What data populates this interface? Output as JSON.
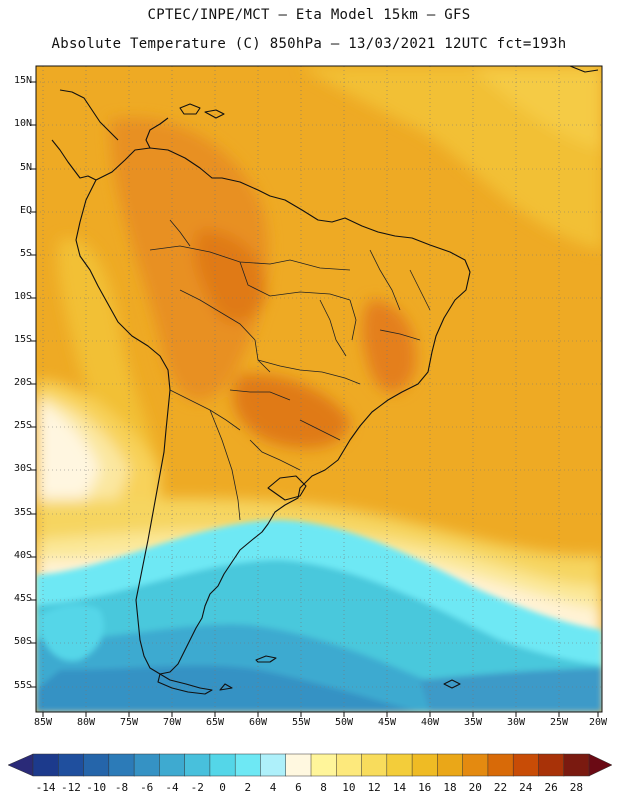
{
  "header": {
    "line1": "CPTEC/INPE/MCT –  Eta Model 15km – GFS",
    "line2": "Absolute Temperature (C) 850hPa – 13/03/2021 12UTC fct=193h"
  },
  "map": {
    "lat_labels": [
      "15N",
      "10N",
      "5N",
      "EQ",
      "5S",
      "10S",
      "15S",
      "20S",
      "25S",
      "30S",
      "35S",
      "40S",
      "45S",
      "50S",
      "55S"
    ],
    "lon_labels": [
      "85W",
      "80W",
      "75W",
      "70W",
      "65W",
      "60W",
      "55W",
      "50W",
      "45W",
      "40W",
      "35W",
      "30W",
      "25W",
      "20W"
    ]
  },
  "colorbar": {
    "labels": [
      "-14",
      "-12",
      "-10",
      "-8",
      "-6",
      "-4",
      "-2",
      "0",
      "2",
      "4",
      "6",
      "8",
      "10",
      "12",
      "14",
      "16",
      "18",
      "20",
      "22",
      "24",
      "26",
      "28"
    ],
    "colors": [
      "#1c3a8c",
      "#1f4f9e",
      "#2565aa",
      "#2c7bb8",
      "#3592c4",
      "#3eaad0",
      "#48c0dc",
      "#54d6e8",
      "#6ee8f4",
      "#aef0fa",
      "#fff8e0",
      "#fff59a",
      "#fde97c",
      "#f8dc5c",
      "#f3cd3a",
      "#efbb24",
      "#eaa718",
      "#e48a10",
      "#d86a08",
      "#c84c06",
      "#a83208",
      "#7a1a10"
    ],
    "under_color": "#2a2a78",
    "over_color": "#6a0a14"
  },
  "palette": {
    "warm_deep": "#e89020",
    "warm_mid": "#eeaa24",
    "warm_light": "#f2c034",
    "pale_yellow": "#fbe388",
    "cream": "#fff8e0",
    "cyan_light": "#6ee8f4",
    "cyan": "#48c8dc",
    "blue_mid": "#3c9ac8",
    "land_line": "#111111",
    "grid_line": "#777777"
  }
}
